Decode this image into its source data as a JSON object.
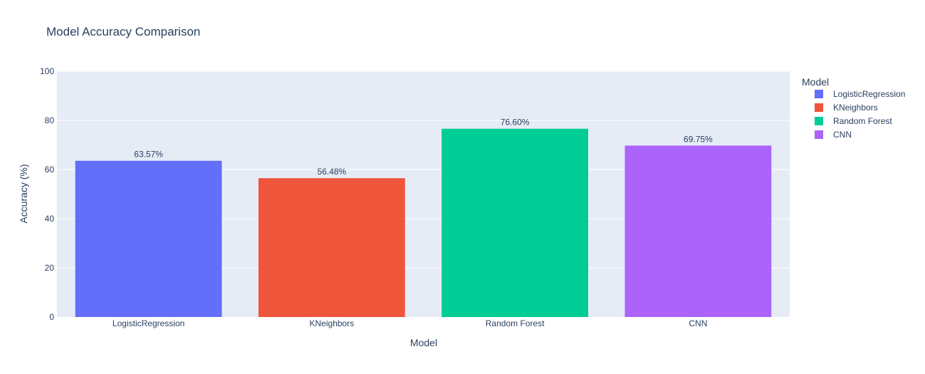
{
  "chart_data": {
    "type": "bar",
    "title": "Model Accuracy Comparison",
    "xlabel": "Model",
    "ylabel": "Accuracy (%)",
    "ylim": [
      0,
      100
    ],
    "yticks": [
      0,
      20,
      40,
      60,
      80,
      100
    ],
    "grid": true,
    "legend_placement": "top-right",
    "legend_title": "Model",
    "categories": [
      "LogisticRegression",
      "KNeighbors",
      "Random Forest",
      "CNN"
    ],
    "values": [
      63.57,
      56.48,
      76.6,
      69.75
    ],
    "value_labels": [
      "63.57%",
      "56.48%",
      "76.60%",
      "69.75%"
    ],
    "colors": [
      "#636efa",
      "#ef553b",
      "#00cc96",
      "#ab63fa"
    ],
    "plot_background": "#e5ecf6"
  }
}
